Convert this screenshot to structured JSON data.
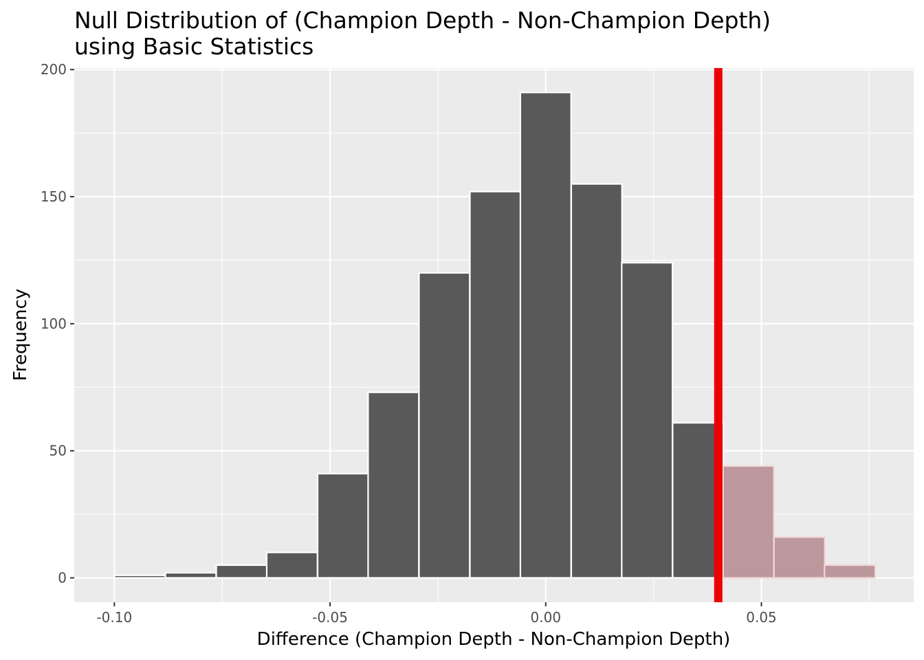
{
  "chart_data": {
    "type": "bar",
    "title_lines": [
      "Null Distribution of (Champion Depth - Non-Champion Depth)",
      "using Basic Statistics"
    ],
    "xlabel": "Difference (Champion Depth - Non-Champion Depth)",
    "ylabel": "Frequency",
    "xlim": [
      -0.1093,
      0.0853
    ],
    "ylim": [
      -9.6,
      200.6
    ],
    "x_ticks": [
      {
        "value": -0.1,
        "label": "-0.10"
      },
      {
        "value": -0.05,
        "label": "-0.05"
      },
      {
        "value": 0.0,
        "label": "0.00"
      },
      {
        "value": 0.05,
        "label": "0.05"
      }
    ],
    "y_ticks": [
      {
        "value": 0,
        "label": "0"
      },
      {
        "value": 50,
        "label": "50"
      },
      {
        "value": 100,
        "label": "100"
      },
      {
        "value": 150,
        "label": "150"
      },
      {
        "value": 200,
        "label": "200"
      }
    ],
    "grid": true,
    "bin_width": 0.01176,
    "bins": [
      {
        "center": -0.0941,
        "count": 1
      },
      {
        "center": -0.0823,
        "count": 2
      },
      {
        "center": -0.0705,
        "count": 5
      },
      {
        "center": -0.0588,
        "count": 10
      },
      {
        "center": -0.047,
        "count": 41
      },
      {
        "center": -0.0353,
        "count": 73
      },
      {
        "center": -0.0235,
        "count": 120
      },
      {
        "center": -0.0117,
        "count": 152
      },
      {
        "center": 0.0,
        "count": 191
      },
      {
        "center": 0.0118,
        "count": 155
      },
      {
        "center": 0.0235,
        "count": 124
      },
      {
        "center": 0.0353,
        "count": 61
      },
      {
        "center": 0.047,
        "count": 44
      },
      {
        "center": 0.0588,
        "count": 16
      },
      {
        "center": 0.0705,
        "count": 5
      }
    ],
    "observed_statistic": 0.04,
    "shade_direction": "right",
    "colors": {
      "panel_background": "#ebebeb",
      "grid": "#ffffff",
      "bar_fill": "#595959",
      "bar_outline": "#ffffff",
      "shaded_fill": "#bc979c",
      "shaded_outline": "#f2d6d9",
      "observed_line": "#ee0000"
    }
  }
}
